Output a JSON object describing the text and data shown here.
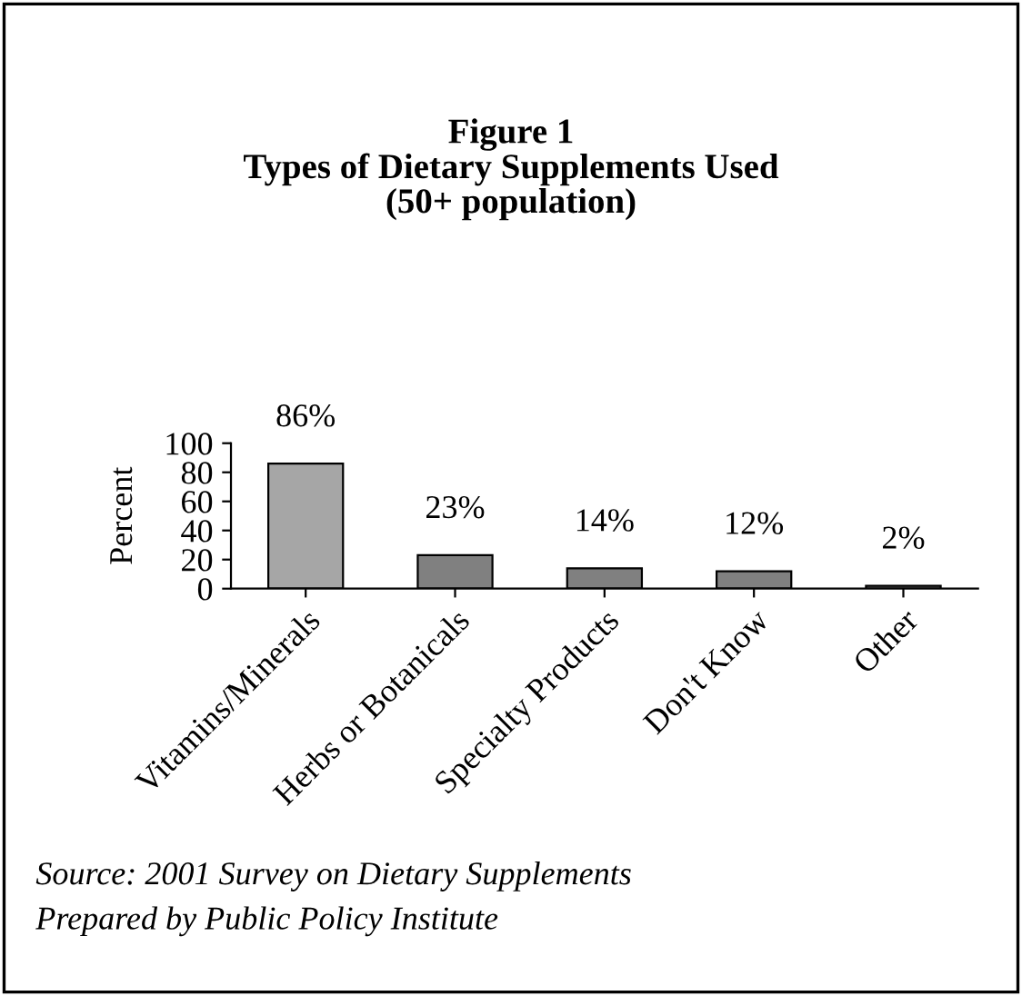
{
  "chart_data": {
    "type": "bar",
    "title": "Figure 1\nTypes of Dietary Supplements Used\n(50+ population)",
    "ylabel": "Percent",
    "categories": [
      "Vitamins/Minerals",
      "Herbs or Botanicals",
      "Specialty Products",
      "Don't Know",
      "Other"
    ],
    "values": [
      86,
      23,
      14,
      12,
      2
    ],
    "colors": [
      "#a6a6a6",
      "#808080",
      "#808080",
      "#808080",
      "#808080"
    ],
    "ylim": [
      0,
      100
    ],
    "yticks": [
      0,
      20,
      40,
      60,
      80,
      100
    ],
    "grid": false,
    "legend": false,
    "value_labels": [
      "86%",
      "23%",
      "14%",
      "12%",
      "2%"
    ],
    "annotations": [
      "Source: 2001 Survey on Dietary Supplements",
      "Prepared by Public Policy Institute"
    ]
  }
}
